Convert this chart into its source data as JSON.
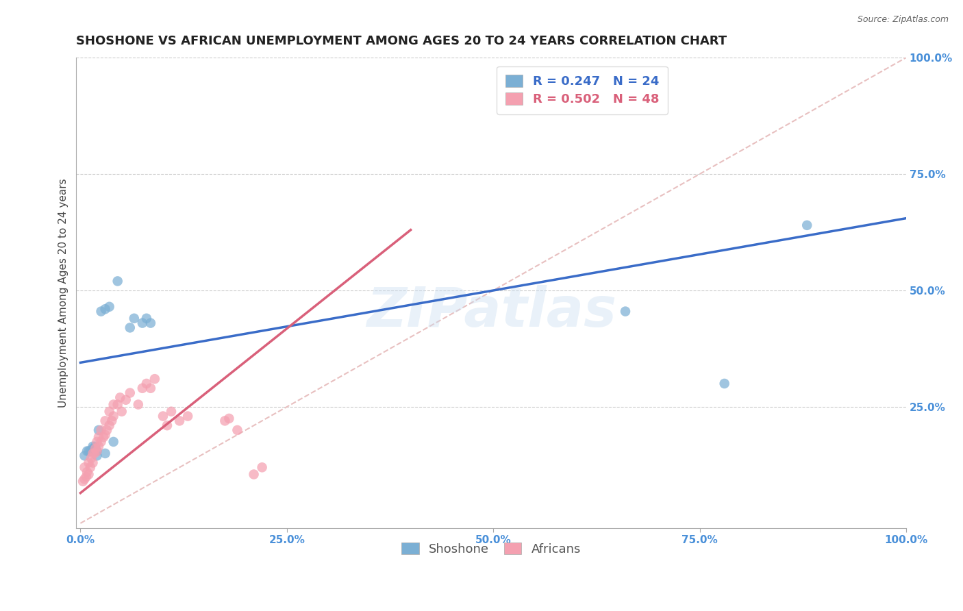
{
  "title": "SHOSHONE VS AFRICAN UNEMPLOYMENT AMONG AGES 20 TO 24 YEARS CORRELATION CHART",
  "source": "Source: ZipAtlas.com",
  "tick_color": "#4a90d9",
  "ylabel": "Unemployment Among Ages 20 to 24 years",
  "xlim": [
    -0.005,
    1.0
  ],
  "ylim": [
    -0.01,
    1.0
  ],
  "xticks": [
    0.0,
    0.25,
    0.5,
    0.75,
    1.0
  ],
  "yticks": [
    0.25,
    0.5,
    0.75,
    1.0
  ],
  "xtick_labels": [
    "0.0%",
    "25.0%",
    "50.0%",
    "75.0%",
    "100.0%"
  ],
  "ytick_labels": [
    "25.0%",
    "50.0%",
    "75.0%",
    "100.0%"
  ],
  "background_color": "#ffffff",
  "grid_color": "#cccccc",
  "shoshone_color": "#7bafd4",
  "african_color": "#f4a0b0",
  "shoshone_line_color": "#3a6cc8",
  "african_line_color": "#d9607a",
  "ref_line_color": "#e8c0c0",
  "legend_line1": "R = 0.247   N = 24",
  "legend_line2": "R = 0.502   N = 48",
  "legend_label_shoshone": "Shoshone",
  "legend_label_african": "Africans",
  "shoshone_x": [
    0.005,
    0.008,
    0.01,
    0.012,
    0.015,
    0.015,
    0.018,
    0.02,
    0.02,
    0.022,
    0.025,
    0.03,
    0.035,
    0.04,
    0.045,
    0.06,
    0.065,
    0.075,
    0.08,
    0.085,
    0.03,
    0.66,
    0.78,
    0.88
  ],
  "shoshone_y": [
    0.145,
    0.155,
    0.155,
    0.155,
    0.16,
    0.165,
    0.165,
    0.145,
    0.155,
    0.2,
    0.455,
    0.46,
    0.465,
    0.175,
    0.52,
    0.42,
    0.44,
    0.43,
    0.44,
    0.43,
    0.15,
    0.455,
    0.3,
    0.64
  ],
  "african_x": [
    0.003,
    0.005,
    0.005,
    0.007,
    0.008,
    0.01,
    0.01,
    0.012,
    0.013,
    0.015,
    0.015,
    0.017,
    0.018,
    0.02,
    0.02,
    0.022,
    0.022,
    0.025,
    0.025,
    0.028,
    0.03,
    0.03,
    0.032,
    0.035,
    0.035,
    0.038,
    0.04,
    0.04,
    0.045,
    0.048,
    0.05,
    0.055,
    0.06,
    0.07,
    0.075,
    0.08,
    0.085,
    0.09,
    0.1,
    0.105,
    0.11,
    0.12,
    0.13,
    0.175,
    0.18,
    0.19,
    0.21,
    0.22
  ],
  "african_y": [
    0.09,
    0.095,
    0.12,
    0.1,
    0.11,
    0.105,
    0.13,
    0.12,
    0.14,
    0.13,
    0.15,
    0.15,
    0.16,
    0.155,
    0.175,
    0.165,
    0.185,
    0.175,
    0.2,
    0.185,
    0.19,
    0.22,
    0.2,
    0.21,
    0.24,
    0.22,
    0.23,
    0.255,
    0.255,
    0.27,
    0.24,
    0.265,
    0.28,
    0.255,
    0.29,
    0.3,
    0.29,
    0.31,
    0.23,
    0.21,
    0.24,
    0.22,
    0.23,
    0.22,
    0.225,
    0.2,
    0.105,
    0.12
  ],
  "shoshone_line_x": [
    0.0,
    1.0
  ],
  "shoshone_line_y": [
    0.345,
    0.655
  ],
  "african_line_x": [
    0.0,
    0.4
  ],
  "african_line_y": [
    0.065,
    0.63
  ],
  "ref_line_x": [
    0.0,
    1.0
  ],
  "ref_line_y": [
    0.0,
    1.0
  ],
  "watermark_text": "ZIPatlas",
  "title_fontsize": 13,
  "axis_fontsize": 11,
  "tick_fontsize": 11,
  "legend_fontsize": 13
}
